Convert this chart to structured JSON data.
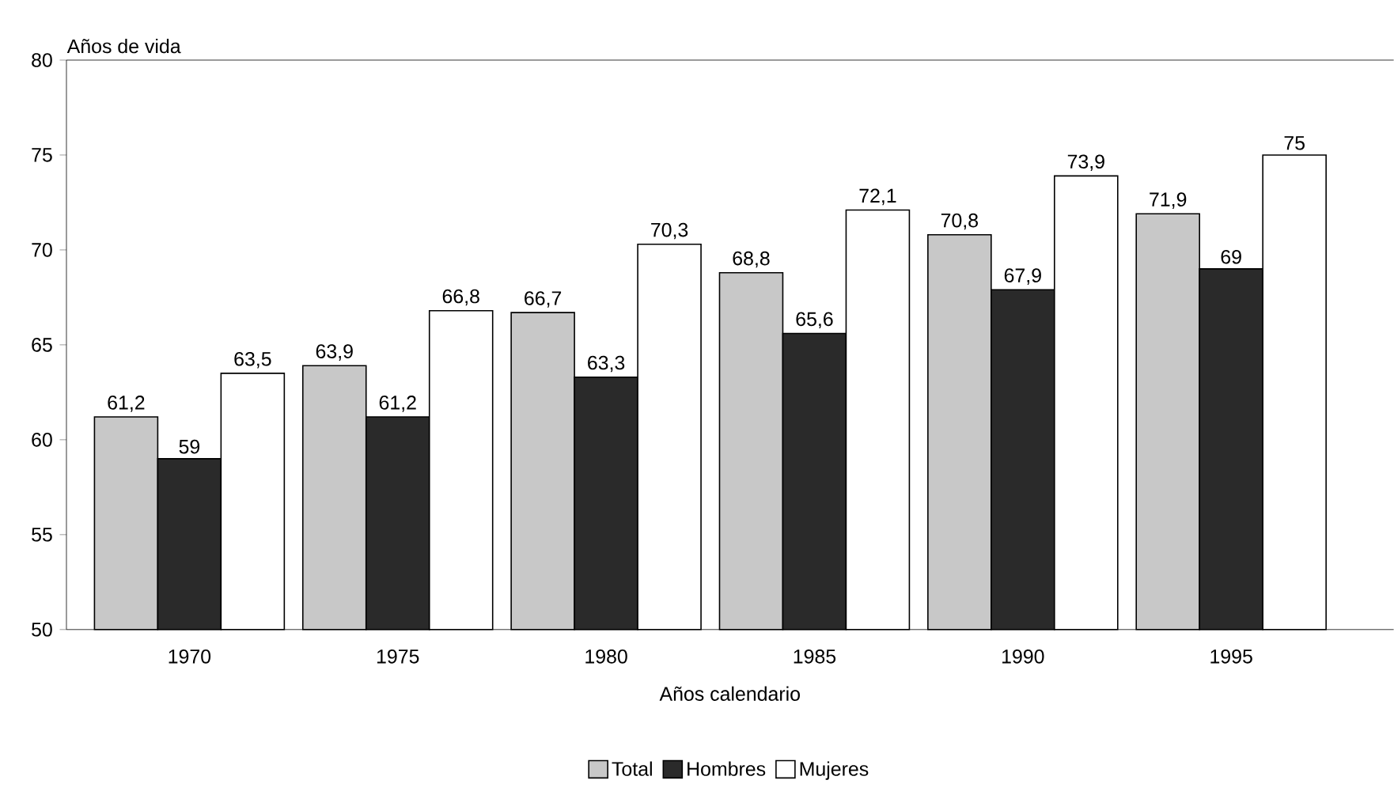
{
  "chart_data": {
    "type": "bar",
    "ylabel": "Años de vida",
    "xlabel": "Años calendario",
    "categories": [
      "1970",
      "1975",
      "1980",
      "1985",
      "1990",
      "1995"
    ],
    "series": [
      {
        "name": "Total",
        "color": "#c8c8c8",
        "values": [
          61.2,
          63.9,
          66.7,
          68.8,
          70.8,
          71.9
        ],
        "value_labels": [
          "61,2",
          "63,9",
          "66,7",
          "68,8",
          "70,8",
          "71,9"
        ]
      },
      {
        "name": "Hombres",
        "color": "#2a2a2a",
        "values": [
          59,
          61.2,
          63.3,
          65.6,
          67.9,
          69
        ],
        "value_labels": [
          "59",
          "61,2",
          "63,3",
          "65,6",
          "67,9",
          "69"
        ]
      },
      {
        "name": "Mujeres",
        "color": "#ffffff",
        "values": [
          63.5,
          66.8,
          70.3,
          72.1,
          73.9,
          75
        ],
        "value_labels": [
          "63,5",
          "66,8",
          "70,3",
          "72,1",
          "73,9",
          "75"
        ]
      }
    ],
    "ylim": [
      50,
      80
    ],
    "yticks": [
      50,
      55,
      60,
      65,
      70,
      75,
      80
    ],
    "legend": "bottom",
    "grid": false
  }
}
